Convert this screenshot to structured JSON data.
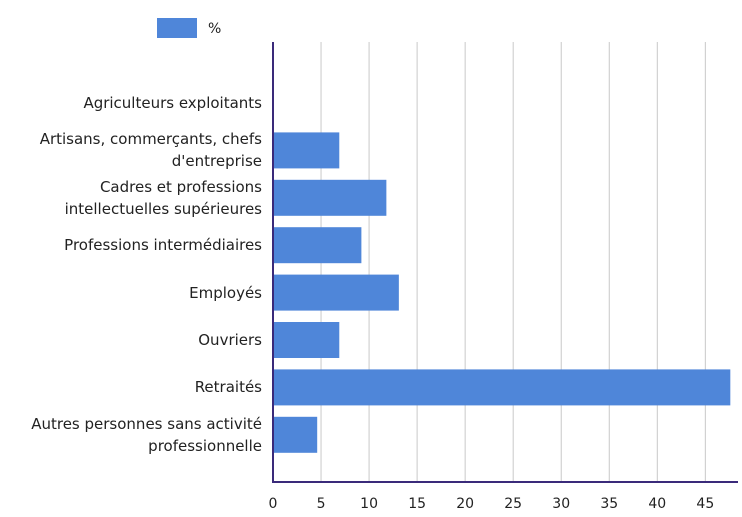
{
  "chart_data": {
    "type": "bar",
    "orientation": "horizontal",
    "categories": [
      "Agriculteurs exploitants",
      "Artisans, commerçants, chefs d'entreprise",
      "Cadres et professions intellectuelles supérieures",
      "Professions intermédiaires",
      "Employés",
      "Ouvriers",
      "Retraités",
      "Autres personnes sans activité professionnelle"
    ],
    "series": [
      {
        "name": "%",
        "color": "#4f86d9",
        "values": [
          0,
          6.9,
          11.8,
          9.2,
          13.1,
          6.9,
          47.6,
          4.6
        ]
      }
    ],
    "xlim": [
      0,
      48.4
    ],
    "xticks": [
      0,
      5,
      10,
      15,
      20,
      25,
      30,
      35,
      40,
      45
    ],
    "grid": true,
    "legend": "top"
  }
}
